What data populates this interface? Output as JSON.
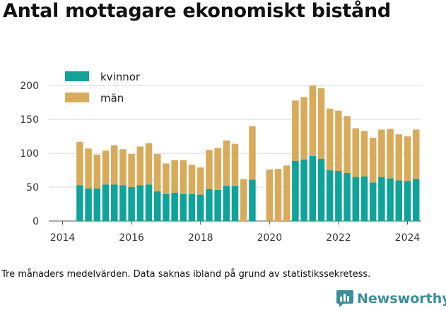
{
  "title": "Antal mottagare ekonomiskt bistånd",
  "caption": "Tre månaders medelvärden. Data saknas ibland på grund av statistikssekretess.",
  "brand": {
    "name": "Newsworthy",
    "icon": "newsworthy-logo-icon",
    "color": "#3a8f9c"
  },
  "colors": {
    "kvinnor": "#0fa39a",
    "man": "#d8ab5b"
  },
  "chart_data": {
    "type": "bar",
    "stacked": true,
    "title": "",
    "xlabel": "",
    "ylabel": "",
    "ylim": [
      0,
      220
    ],
    "xlim": [
      2013.6,
      2024.4
    ],
    "yticks": [
      0,
      50,
      100,
      150,
      200
    ],
    "xticks": [
      2014,
      2016,
      2018,
      2020,
      2022,
      2024
    ],
    "grid": "horizontal",
    "legend": "top-left",
    "x": [
      2014.5,
      2014.75,
      2015.0,
      2015.25,
      2015.5,
      2015.75,
      2016.0,
      2016.25,
      2016.5,
      2016.75,
      2017.0,
      2017.25,
      2017.5,
      2017.75,
      2018.0,
      2018.25,
      2018.5,
      2018.75,
      2019.0,
      2019.25,
      2019.5,
      2019.75,
      2020.0,
      2020.25,
      2020.5,
      2020.75,
      2021.0,
      2021.25,
      2021.5,
      2021.75,
      2022.0,
      2022.25,
      2022.5,
      2022.75,
      2023.0,
      2023.25,
      2023.5,
      2023.75,
      2024.0,
      2024.25
    ],
    "series": [
      {
        "name": "kvinnor",
        "values": [
          53,
          48,
          48,
          54,
          54,
          53,
          50,
          53,
          54,
          44,
          40,
          42,
          40,
          40,
          39,
          47,
          46,
          52,
          52,
          0,
          61,
          null,
          0,
          0,
          0,
          89,
          91,
          96,
          92,
          75,
          74,
          71,
          65,
          66,
          57,
          65,
          63,
          60,
          59,
          62
        ]
      },
      {
        "name": "män",
        "values": [
          64,
          59,
          50,
          50,
          58,
          53,
          49,
          57,
          61,
          55,
          45,
          48,
          50,
          43,
          40,
          58,
          62,
          67,
          62,
          62,
          79,
          null,
          76,
          77,
          82,
          89,
          92,
          104,
          104,
          91,
          89,
          84,
          72,
          67,
          66,
          70,
          73,
          68,
          66,
          73
        ]
      }
    ]
  }
}
